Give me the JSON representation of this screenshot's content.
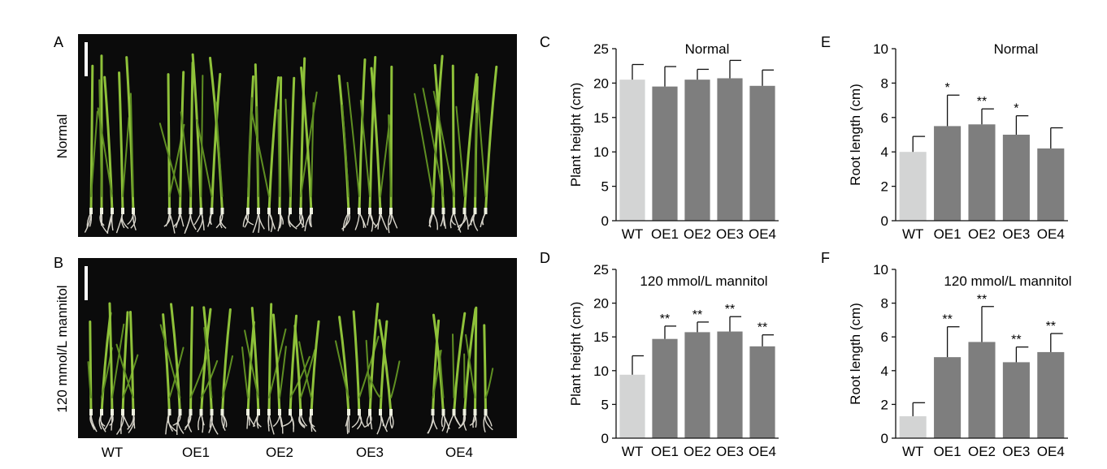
{
  "photo_panels": [
    {
      "letter": "A",
      "row_label": "Normal",
      "bg": "#0b0b0b",
      "groups": [
        {
          "name": "WT",
          "plants": 5
        },
        {
          "name": "OE1",
          "plants": 6
        },
        {
          "name": "OE2",
          "plants": 7
        },
        {
          "name": "OE3",
          "plants": 5
        },
        {
          "name": "OE4",
          "plants": 6
        }
      ]
    },
    {
      "letter": "B",
      "row_label": "120 mmol/L mannitol",
      "bg": "#0b0b0b",
      "groups": [
        {
          "name": "WT",
          "plants": 5
        },
        {
          "name": "OE1",
          "plants": 6
        },
        {
          "name": "OE2",
          "plants": 7
        },
        {
          "name": "OE3",
          "plants": 5
        },
        {
          "name": "OE4",
          "plants": 6
        }
      ]
    }
  ],
  "photo_x_labels": [
    "WT",
    "OE1",
    "OE2",
    "OE3",
    "OE4"
  ],
  "colors": {
    "wt_bar": "#d3d4d4",
    "oe_bar": "#7e7e7e",
    "leaf": "#8fc23a",
    "leaf_dark": "#5f8f22",
    "root": "#d9d6cc"
  },
  "chart_data": [
    {
      "letter": "C",
      "type": "bar",
      "title": "Normal",
      "categories": [
        "WT",
        "OE1",
        "OE2",
        "OE3",
        "OE4"
      ],
      "values": [
        20.5,
        19.5,
        20.5,
        20.7,
        19.6
      ],
      "errors": [
        2.2,
        2.9,
        1.5,
        2.6,
        2.3
      ],
      "significance": [
        "",
        "",
        "",
        "",
        ""
      ],
      "ylabel": "Plant height (cm)",
      "ylim": [
        0,
        25
      ],
      "yticks": [
        0,
        5,
        10,
        15,
        20,
        25
      ]
    },
    {
      "letter": "D",
      "type": "bar",
      "title": "120 mmol/L mannitol",
      "categories": [
        "WT",
        "OE1",
        "OE2",
        "OE3",
        "OE4"
      ],
      "values": [
        9.4,
        14.7,
        15.7,
        15.8,
        13.6
      ],
      "errors": [
        2.8,
        1.9,
        1.5,
        2.2,
        1.7
      ],
      "significance": [
        "",
        "**",
        "**",
        "**",
        "**"
      ],
      "ylabel": "Plant height (cm)",
      "ylim": [
        0,
        25
      ],
      "yticks": [
        0,
        5,
        10,
        15,
        20,
        25
      ]
    },
    {
      "letter": "E",
      "type": "bar",
      "title": "Normal",
      "categories": [
        "WT",
        "OE1",
        "OE2",
        "OE3",
        "OE4"
      ],
      "values": [
        4.0,
        5.5,
        5.6,
        5.0,
        4.2
      ],
      "errors": [
        0.9,
        1.8,
        0.9,
        1.1,
        1.2
      ],
      "significance": [
        "",
        "*",
        "**",
        "*",
        ""
      ],
      "ylabel": "Root length (cm)",
      "ylim": [
        0,
        10
      ],
      "yticks": [
        0,
        2,
        4,
        6,
        8,
        10
      ]
    },
    {
      "letter": "F",
      "type": "bar",
      "title": "120 mmol/L mannitol",
      "categories": [
        "WT",
        "OE1",
        "OE2",
        "OE3",
        "OE4"
      ],
      "values": [
        1.3,
        4.8,
        5.7,
        4.5,
        5.1
      ],
      "errors": [
        0.8,
        1.8,
        2.1,
        0.9,
        1.1
      ],
      "significance": [
        "",
        "**",
        "**",
        "**",
        "**"
      ],
      "ylabel": "Root length (cm)",
      "ylim": [
        0,
        10
      ],
      "yticks": [
        0,
        2,
        4,
        6,
        8,
        10
      ]
    }
  ]
}
